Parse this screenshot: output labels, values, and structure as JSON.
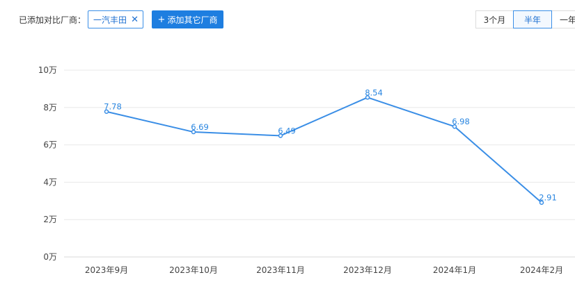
{
  "toolbar": {
    "compare_label": "已添加对比厂商：",
    "chip_label": "一汽丰田",
    "chip_close": "✕",
    "add_plus": "+",
    "add_label": "添加其它厂商",
    "ranges": [
      "3个月",
      "半年",
      "一年"
    ],
    "active_range": "半年"
  },
  "colors": {
    "line": "#3a8ee6",
    "accent": "#1e7ee0",
    "grid": "#e8e8e8"
  },
  "chart_data": {
    "type": "line",
    "categories": [
      "2023年9月",
      "2023年10月",
      "2023年11月",
      "2023年12月",
      "2024年1月",
      "2024年2月"
    ],
    "series": [
      {
        "values": [
          7.78,
          6.69,
          6.49,
          8.54,
          6.98,
          2.91
        ]
      }
    ],
    "data_labels": [
      "7.78",
      "6.69",
      "6.49",
      "8.54",
      "6.98",
      "2.91"
    ],
    "yticks": [
      0,
      2,
      4,
      6,
      8,
      10
    ],
    "ytick_labels": [
      "0万",
      "2万",
      "4万",
      "6万",
      "8万",
      "10万"
    ],
    "ylim": [
      0,
      10
    ],
    "grid": true
  }
}
